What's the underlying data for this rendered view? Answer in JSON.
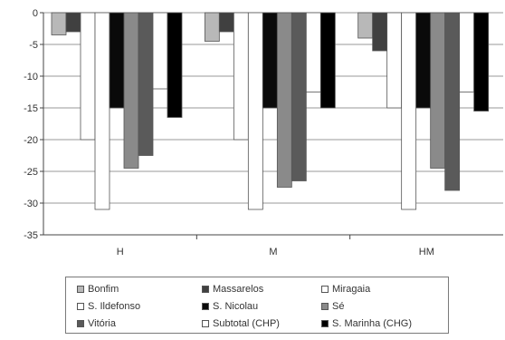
{
  "chart_data": {
    "type": "bar",
    "title": "",
    "xlabel": "",
    "ylabel": "",
    "categories": [
      "H",
      "M",
      "HM"
    ],
    "ylim": [
      -35,
      0
    ],
    "yticks": [
      0,
      -5,
      -10,
      -15,
      -20,
      -25,
      -30,
      -35
    ],
    "grid": true,
    "legend_position": "bottom",
    "series": [
      {
        "name": "Bonfim",
        "color": "#b8b8b8",
        "values": [
          -3.5,
          -4.5,
          -4
        ]
      },
      {
        "name": "Massarelos",
        "color": "#404040",
        "values": [
          -3,
          -3,
          -6
        ]
      },
      {
        "name": "Miragaia",
        "color": "#ffffff",
        "values": [
          -20,
          -20,
          -15
        ]
      },
      {
        "name": "S. Ildefonso",
        "color": "#ffffff",
        "values": [
          -31,
          -31,
          -31
        ]
      },
      {
        "name": "S. Nicolau",
        "color": "#0a0a0a",
        "values": [
          -15,
          -15,
          -15
        ]
      },
      {
        "name": "Sé",
        "color": "#8a8a8a",
        "values": [
          -24.5,
          -27.5,
          -24.5
        ]
      },
      {
        "name": "Vitória",
        "color": "#5a5a5a",
        "values": [
          -22.5,
          -26.5,
          -28
        ]
      },
      {
        "name": "Subtotal (CHP)",
        "color": "#ffffff",
        "values": [
          -12,
          -12.5,
          -12.5
        ]
      },
      {
        "name": "S. Marinha (CHG)",
        "color": "#000000",
        "values": [
          -16.5,
          -15,
          -15.5
        ]
      }
    ],
    "legend": [
      {
        "name": "Bonfim",
        "color": "#b8b8b8"
      },
      {
        "name": "Massarelos",
        "color": "#404040"
      },
      {
        "name": "Miragaia",
        "color": "#ffffff"
      },
      {
        "name": "S. Ildefonso",
        "color": "#ffffff"
      },
      {
        "name": "S. Nicolau",
        "color": "#0a0a0a"
      },
      {
        "name": "Sé",
        "color": "#8a8a8a"
      },
      {
        "name": "Vitória",
        "color": "#5a5a5a"
      },
      {
        "name": "Subtotal (CHP)",
        "color": "#ffffff"
      },
      {
        "name": "S. Marinha (CHG)",
        "color": "#000000"
      }
    ]
  }
}
